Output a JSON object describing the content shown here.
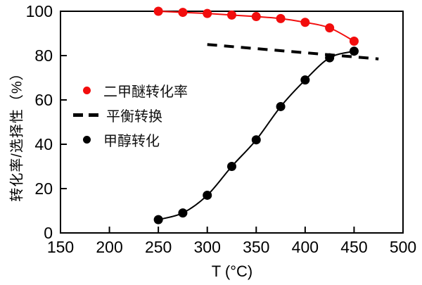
{
  "figure": {
    "background": "#ffffff",
    "frame_color": "#000000"
  },
  "chart_data": {
    "type": "line",
    "title": "",
    "xlabel": "T (°C)",
    "ylabel": "转化率/选择性（%）",
    "xlim": [
      150,
      500
    ],
    "ylim": [
      0,
      100
    ],
    "x_ticks": [
      150,
      200,
      250,
      300,
      350,
      400,
      450,
      500
    ],
    "y_ticks": [
      0,
      20,
      40,
      60,
      80,
      100
    ],
    "grid": false,
    "legend_position": "inside-upper-left",
    "series": [
      {
        "id": "dme-conversion",
        "name": "二甲醚转化率",
        "color": "#f20d0d",
        "marker": "circle",
        "line": "solid",
        "x": [
          250,
          275,
          300,
          325,
          350,
          375,
          400,
          425,
          450
        ],
        "values": [
          100,
          99.5,
          99,
          98.3,
          97.6,
          96.7,
          95,
          92.5,
          86.5
        ]
      },
      {
        "id": "equilibrium-conversion",
        "name": "平衡转换",
        "color": "#000000",
        "marker": "none",
        "line": "dashed",
        "x": [
          300,
          475
        ],
        "values": [
          85,
          78.5
        ]
      },
      {
        "id": "methanol-conversion",
        "name": "甲醇转化",
        "color": "#000000",
        "marker": "circle",
        "line": "solid",
        "x": [
          250,
          275,
          300,
          325,
          350,
          375,
          400,
          425,
          450
        ],
        "values": [
          6,
          9,
          17,
          30,
          42,
          57,
          69,
          79,
          82
        ]
      }
    ]
  }
}
